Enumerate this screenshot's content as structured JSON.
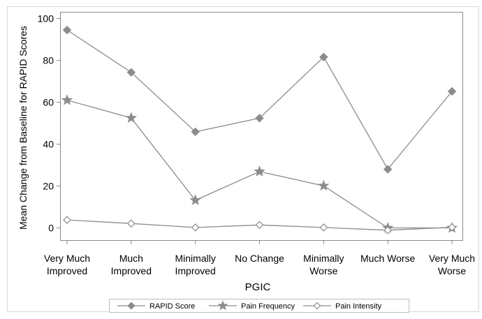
{
  "chart_data": {
    "type": "line",
    "xlabel": "PGIC",
    "ylabel": "Mean Change from Baseline for RAPID Scores",
    "categories": [
      [
        "Very Much",
        "Improved"
      ],
      [
        "Much",
        "Improved"
      ],
      [
        "Minimally",
        "Improved"
      ],
      [
        "No Change"
      ],
      [
        "Minimally",
        "Worse"
      ],
      [
        "Much Worse"
      ],
      [
        "Very Much",
        "Worse"
      ]
    ],
    "ylim": [
      -6,
      103
    ],
    "yticks": [
      0,
      20,
      40,
      60,
      80,
      100
    ],
    "grid": false,
    "legend_position": "bottom",
    "series": [
      {
        "name": "RAPID Score",
        "marker": "filled-diamond",
        "color": "#8c8c8c",
        "values": [
          94.5,
          74.3,
          45.9,
          52.4,
          81.6,
          28.0,
          65.2
        ]
      },
      {
        "name": "Pain Frequency",
        "marker": "filled-star",
        "color": "#8c8c8c",
        "values": [
          61.0,
          52.5,
          13.2,
          26.9,
          20.1,
          0.0,
          0.0
        ]
      },
      {
        "name": "Pain Intensity",
        "marker": "open-diamond",
        "color": "#8c8c8c",
        "values": [
          3.8,
          2.1,
          0.2,
          1.4,
          0.2,
          -1.1,
          0.3
        ]
      }
    ]
  }
}
